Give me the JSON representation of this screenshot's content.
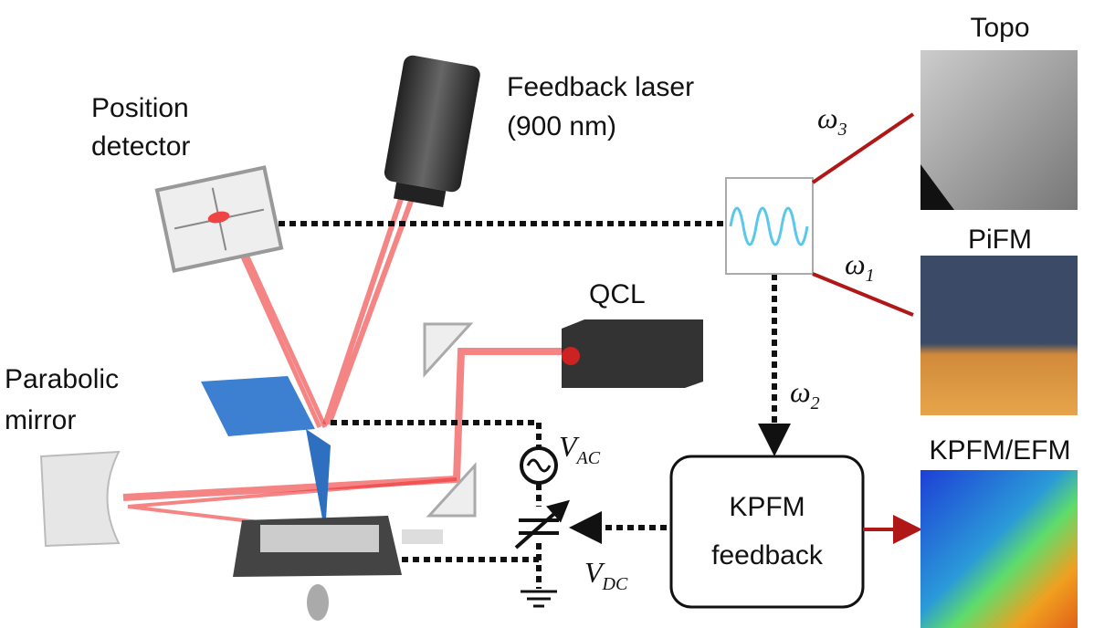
{
  "labels": {
    "topo": "Topo",
    "pifm": "PiFM",
    "kpfm_efm": "KPFM/EFM",
    "feedback_laser": [
      "Feedback laser",
      "(900 nm)"
    ],
    "position_detector": [
      "Position",
      "detector"
    ],
    "qcl": "QCL",
    "parabolic_mirror": [
      "Parabolic",
      "mirror"
    ],
    "kpfm_feedback": [
      "KPFM",
      "feedback"
    ]
  },
  "symbols": {
    "omega3": {
      "symbol": "ω",
      "sub": "3"
    },
    "omega1": {
      "symbol": "ω",
      "sub": "1"
    },
    "omega2": {
      "symbol": "ω",
      "sub": "2"
    },
    "vac": {
      "symbol": "V",
      "sub": "AC"
    },
    "vdc": {
      "symbol": "V",
      "sub": "DC"
    }
  }
}
